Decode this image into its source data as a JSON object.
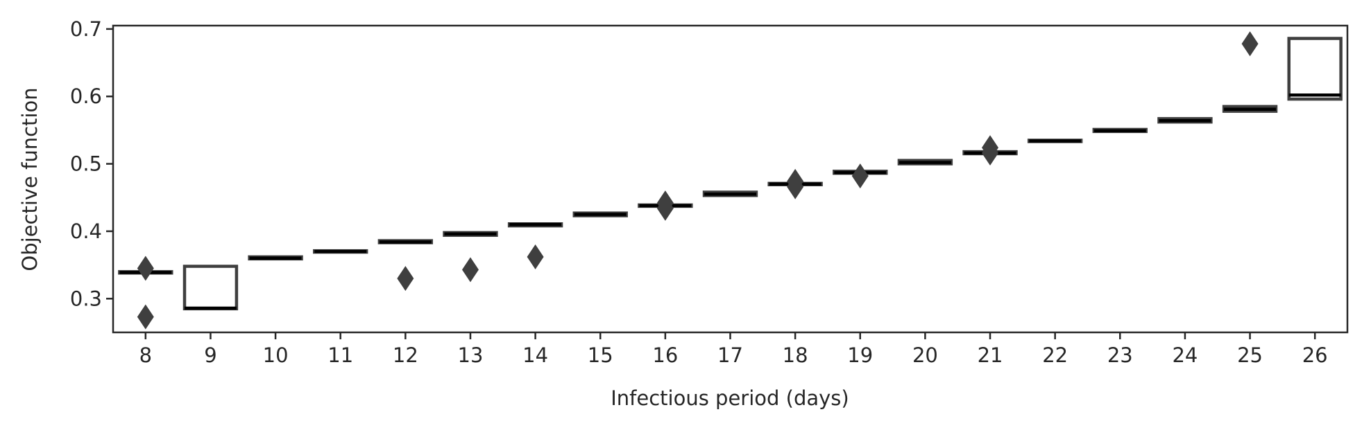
{
  "chart_data": {
    "type": "box",
    "xlabel": "Infectious period (days)",
    "ylabel": "Objective function",
    "ylim": [
      0.25,
      0.705
    ],
    "yticks": [
      0.3,
      0.4,
      0.5,
      0.6,
      0.7
    ],
    "ytick_labels": [
      "0.3",
      "0.4",
      "0.5",
      "0.6",
      "0.7"
    ],
    "grid": false,
    "categories": [
      "8",
      "9",
      "10",
      "11",
      "12",
      "13",
      "14",
      "15",
      "16",
      "17",
      "18",
      "19",
      "20",
      "21",
      "22",
      "23",
      "24",
      "25",
      "26"
    ],
    "boxes": [
      {
        "category": "8",
        "q1": 0.338,
        "median": 0.339,
        "q3": 0.34,
        "whisker_low": 0.338,
        "whisker_high": 0.34,
        "outliers": [
          0.345,
          0.273
        ]
      },
      {
        "category": "9",
        "q1": 0.285,
        "median": 0.286,
        "q3": 0.348,
        "whisker_low": 0.285,
        "whisker_high": 0.348,
        "outliers": []
      },
      {
        "category": "10",
        "q1": 0.359,
        "median": 0.36,
        "q3": 0.362,
        "whisker_low": 0.359,
        "whisker_high": 0.362,
        "outliers": []
      },
      {
        "category": "11",
        "q1": 0.369,
        "median": 0.37,
        "q3": 0.371,
        "whisker_low": 0.369,
        "whisker_high": 0.371,
        "outliers": []
      },
      {
        "category": "12",
        "q1": 0.383,
        "median": 0.384,
        "q3": 0.386,
        "whisker_low": 0.383,
        "whisker_high": 0.386,
        "outliers": [
          0.33
        ]
      },
      {
        "category": "13",
        "q1": 0.394,
        "median": 0.396,
        "q3": 0.398,
        "whisker_low": 0.394,
        "whisker_high": 0.398,
        "outliers": [
          0.343
        ]
      },
      {
        "category": "14",
        "q1": 0.408,
        "median": 0.41,
        "q3": 0.411,
        "whisker_low": 0.408,
        "whisker_high": 0.411,
        "outliers": [
          0.362
        ]
      },
      {
        "category": "15",
        "q1": 0.423,
        "median": 0.425,
        "q3": 0.427,
        "whisker_low": 0.423,
        "whisker_high": 0.427,
        "outliers": []
      },
      {
        "category": "16",
        "q1": 0.437,
        "median": 0.438,
        "q3": 0.439,
        "whisker_low": 0.437,
        "whisker_high": 0.439,
        "outliers": [
          0.442,
          0.434
        ]
      },
      {
        "category": "17",
        "q1": 0.453,
        "median": 0.455,
        "q3": 0.458,
        "whisker_low": 0.453,
        "whisker_high": 0.458,
        "outliers": []
      },
      {
        "category": "18",
        "q1": 0.469,
        "median": 0.47,
        "q3": 0.471,
        "whisker_low": 0.469,
        "whisker_high": 0.471,
        "outliers": [
          0.474,
          0.466
        ]
      },
      {
        "category": "19",
        "q1": 0.486,
        "median": 0.487,
        "q3": 0.489,
        "whisker_low": 0.486,
        "whisker_high": 0.489,
        "outliers": [
          0.482
        ]
      },
      {
        "category": "20",
        "q1": 0.5,
        "median": 0.502,
        "q3": 0.505,
        "whisker_low": 0.5,
        "whisker_high": 0.505,
        "outliers": []
      },
      {
        "category": "21",
        "q1": 0.515,
        "median": 0.516,
        "q3": 0.518,
        "whisker_low": 0.515,
        "whisker_high": 0.518,
        "outliers": [
          0.524,
          0.516
        ]
      },
      {
        "category": "22",
        "q1": 0.533,
        "median": 0.534,
        "q3": 0.535,
        "whisker_low": 0.533,
        "whisker_high": 0.535,
        "outliers": []
      },
      {
        "category": "23",
        "q1": 0.548,
        "median": 0.549,
        "q3": 0.551,
        "whisker_low": 0.548,
        "whisker_high": 0.551,
        "outliers": []
      },
      {
        "category": "24",
        "q1": 0.562,
        "median": 0.564,
        "q3": 0.567,
        "whisker_low": 0.562,
        "whisker_high": 0.567,
        "outliers": []
      },
      {
        "category": "25",
        "q1": 0.578,
        "median": 0.581,
        "q3": 0.585,
        "whisker_low": 0.578,
        "whisker_high": 0.585,
        "outliers": [
          0.678
        ]
      },
      {
        "category": "26",
        "q1": 0.596,
        "median": 0.602,
        "q3": 0.686,
        "whisker_low": 0.596,
        "whisker_high": 0.686,
        "outliers": []
      }
    ],
    "colors": {
      "box_edge": "#3f3f3f",
      "median": "#000000",
      "outlier": "#3f3f3f",
      "axis": "#262626",
      "text": "#262626"
    }
  }
}
